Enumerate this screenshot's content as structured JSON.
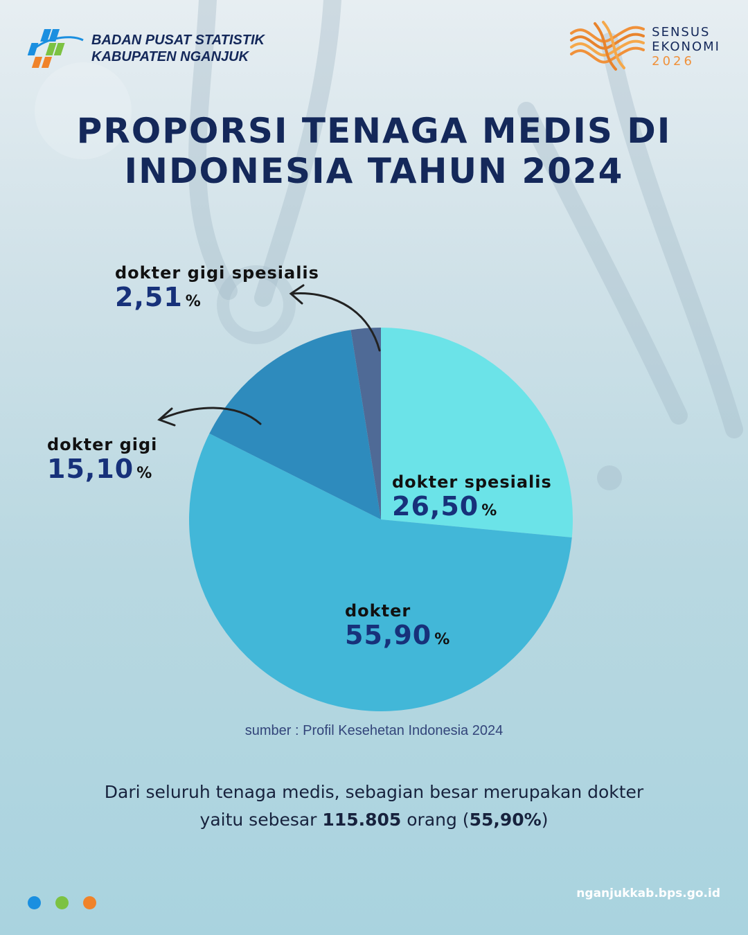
{
  "header": {
    "org_line1": "BADAN PUSAT STATISTIK",
    "org_line2": "KABUPATEN NGANJUK",
    "logo_icon": "bps-logo-icon",
    "census_logo_icon": "sensus-ekonomi-logo-icon",
    "census_line1": "SENSUS",
    "census_line2": "EKONOMI",
    "census_year": "2026"
  },
  "title": {
    "line1": "PROPORSI TENAGA MEDIS DI",
    "line2": "INDONESIA TAHUN 2024"
  },
  "chart_data": {
    "type": "pie",
    "title": "PROPORSI TENAGA MEDIS DI INDONESIA TAHUN 2024",
    "start": "12 o'clock, clockwise",
    "slices": [
      {
        "label": "dokter spesialis",
        "value": 26.5,
        "display": "26,50",
        "unit": "%",
        "color": "#6be3e8"
      },
      {
        "label": "dokter",
        "value": 55.9,
        "display": "55,90",
        "unit": "%",
        "color": "#42b7d8"
      },
      {
        "label": "dokter gigi",
        "value": 15.1,
        "display": "15,10",
        "unit": "%",
        "color": "#2e8bbd"
      },
      {
        "label": "dokter gigi spesialis",
        "value": 2.51,
        "display": "2,51",
        "unit": "%",
        "color": "#4f6a96"
      }
    ]
  },
  "source": "sumber : Profil Kesehetan Indonesia 2024",
  "summary": {
    "line1": "Dari seluruh tenaga medis, sebagian besar merupakan dokter",
    "line2_prefix": "yaitu sebesar",
    "line2_count": "115.805",
    "line2_mid": "orang (",
    "line2_pct": "55,90%",
    "line2_suffix": ")"
  },
  "footer": {
    "dot_colors": [
      "#1a8fe0",
      "#7cc242",
      "#f0832a"
    ],
    "website": "nganjukkab.bps.go.id"
  }
}
